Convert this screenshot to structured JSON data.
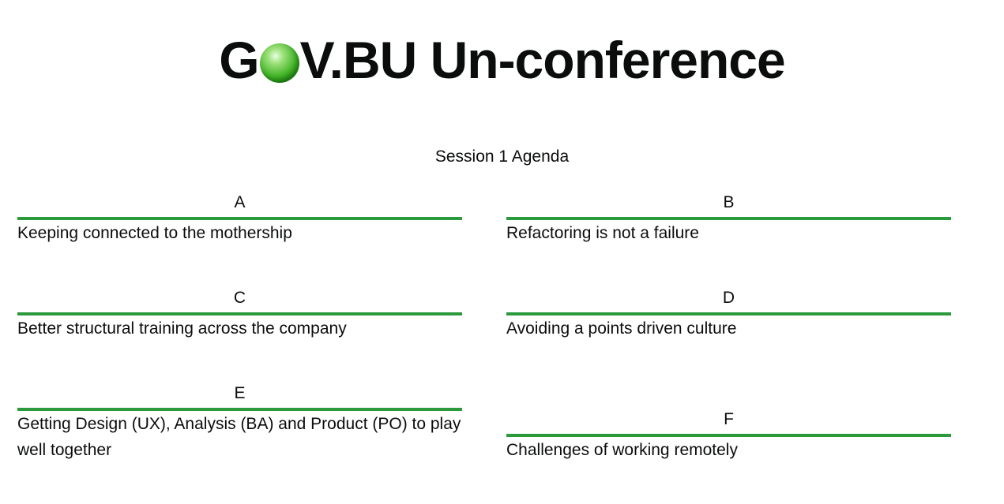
{
  "header": {
    "title_prefix": "G",
    "title_suffix": "V.BU Un-conference"
  },
  "agenda": {
    "heading": "Session 1 Agenda",
    "slots": [
      {
        "letter": "A",
        "topic": "Keeping connected to the mothership"
      },
      {
        "letter": "B",
        "topic": "Refactoring is not a failure"
      },
      {
        "letter": "C",
        "topic": "Better structural training across the company"
      },
      {
        "letter": "D",
        "topic": "Avoiding a points driven culture"
      },
      {
        "letter": "E",
        "topic": "Getting Design (UX), Analysis (BA) and Product (PO) to play well together"
      },
      {
        "letter": "F",
        "topic": "Challenges of working remotely"
      }
    ]
  },
  "colors": {
    "accent": "#2b9a3c",
    "orb": "#47b62b",
    "text": "#0b0c0c"
  }
}
